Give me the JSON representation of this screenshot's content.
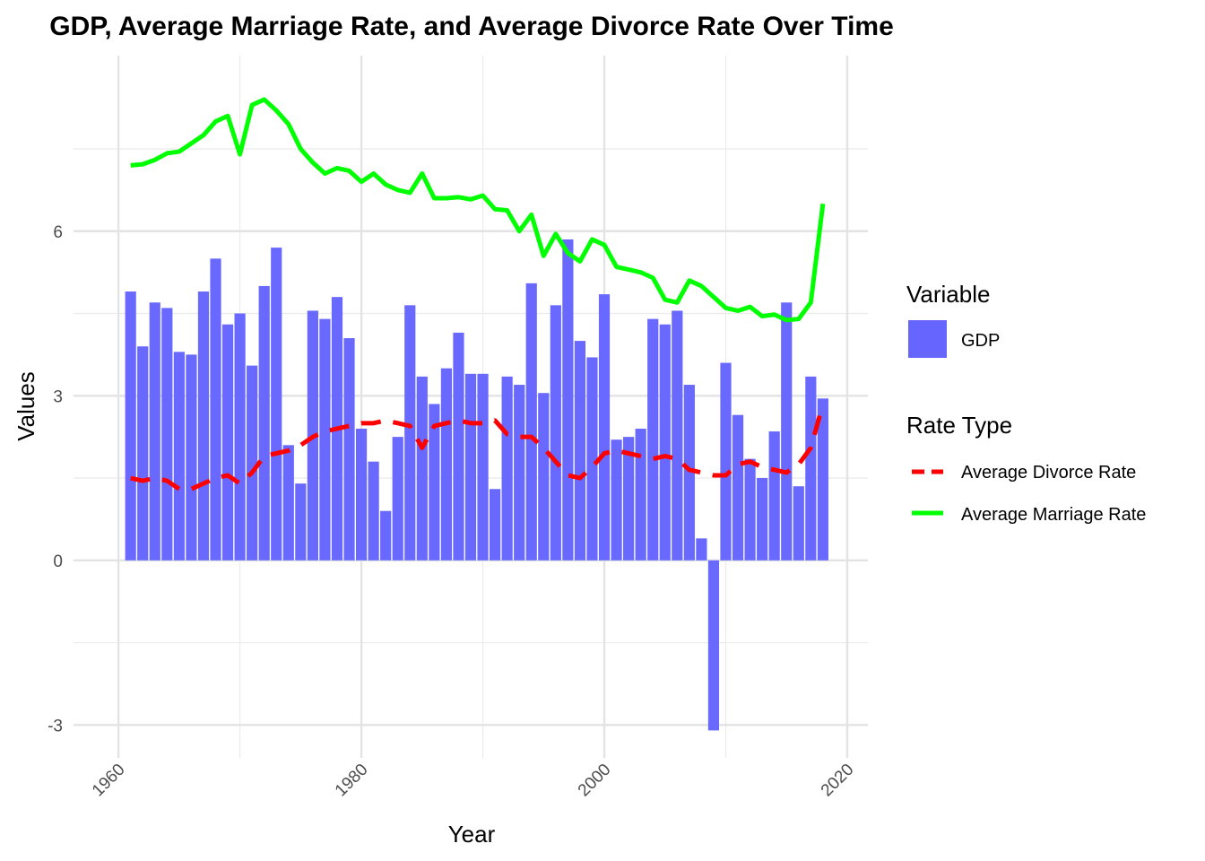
{
  "chart_data": {
    "type": "bar",
    "title": "GDP, Average Marriage Rate, and Average Divorce Rate Over Time",
    "xlabel": "Year",
    "ylabel": "Values",
    "xlim": [
      1956.3,
      2021.7
    ],
    "ylim": [
      -3.6,
      9.2
    ],
    "x_ticks": [
      1960,
      1980,
      2000,
      2020
    ],
    "y_ticks": [
      -3,
      0,
      3,
      6
    ],
    "grid": true,
    "legend_position": "right",
    "years": [
      1961,
      1962,
      1963,
      1964,
      1965,
      1966,
      1967,
      1968,
      1969,
      1970,
      1971,
      1972,
      1973,
      1974,
      1975,
      1976,
      1977,
      1978,
      1979,
      1980,
      1981,
      1982,
      1983,
      1984,
      1985,
      1986,
      1987,
      1988,
      1989,
      1990,
      1991,
      1992,
      1993,
      1994,
      1995,
      1996,
      1997,
      1998,
      1999,
      2000,
      2001,
      2002,
      2003,
      2004,
      2005,
      2006,
      2007,
      2008,
      2009,
      2010,
      2011,
      2012,
      2013,
      2014,
      2015,
      2016,
      2017,
      2018
    ],
    "series": [
      {
        "name": "GDP",
        "kind": "bar",
        "color": "#6666ff",
        "values": [
          4.9,
          3.9,
          4.7,
          4.6,
          3.8,
          3.75,
          4.9,
          5.5,
          4.3,
          4.5,
          3.55,
          5.0,
          5.7,
          2.1,
          1.4,
          4.55,
          4.4,
          4.8,
          4.05,
          2.4,
          1.8,
          0.9,
          2.25,
          4.65,
          3.35,
          2.85,
          3.5,
          4.15,
          3.4,
          3.4,
          1.3,
          3.35,
          3.2,
          5.05,
          3.05,
          4.65,
          5.85,
          4.0,
          3.7,
          4.85,
          2.2,
          2.25,
          2.4,
          4.4,
          4.3,
          4.55,
          3.2,
          0.4,
          -3.1,
          3.6,
          2.65,
          1.85,
          1.5,
          2.35,
          4.7,
          1.35,
          3.35,
          2.95
        ]
      },
      {
        "name": "Average Divorce Rate",
        "kind": "line",
        "color": "#ff0000",
        "dash": "dashed",
        "values": [
          1.5,
          1.45,
          1.5,
          1.45,
          1.3,
          1.3,
          1.4,
          1.5,
          1.55,
          1.4,
          1.6,
          1.9,
          1.95,
          2.0,
          2.1,
          2.25,
          2.35,
          2.4,
          2.45,
          2.5,
          2.5,
          2.55,
          2.5,
          2.45,
          2.05,
          2.45,
          2.5,
          2.55,
          2.5,
          2.5,
          2.55,
          2.3,
          2.25,
          2.25,
          2.05,
          1.8,
          1.55,
          1.5,
          1.7,
          1.95,
          2.0,
          1.95,
          1.9,
          1.85,
          1.9,
          1.85,
          1.65,
          1.6,
          1.55,
          1.55,
          1.75,
          1.8,
          1.7,
          1.65,
          1.6,
          1.75,
          2.05,
          2.85
        ]
      },
      {
        "name": "Average Marriage Rate",
        "kind": "line",
        "color": "#00ff00",
        "dash": "solid",
        "values": [
          7.2,
          7.22,
          7.3,
          7.42,
          7.45,
          7.6,
          7.75,
          8.0,
          8.1,
          7.4,
          8.3,
          8.4,
          8.2,
          7.95,
          7.5,
          7.25,
          7.05,
          7.15,
          7.1,
          6.9,
          7.05,
          6.85,
          6.75,
          6.7,
          7.05,
          6.6,
          6.6,
          6.62,
          6.58,
          6.65,
          6.4,
          6.38,
          6.0,
          6.3,
          5.55,
          5.95,
          5.6,
          5.45,
          5.85,
          5.75,
          5.35,
          5.3,
          5.25,
          5.15,
          4.75,
          4.7,
          5.1,
          5.0,
          4.8,
          4.6,
          4.55,
          4.62,
          4.45,
          4.48,
          4.38,
          4.4,
          4.7,
          6.5
        ]
      }
    ]
  },
  "legend": {
    "variable_title": "Variable",
    "variable_items": [
      "GDP"
    ],
    "rate_title": "Rate Type",
    "rate_items": [
      "Average Divorce Rate",
      "Average Marriage Rate"
    ]
  }
}
